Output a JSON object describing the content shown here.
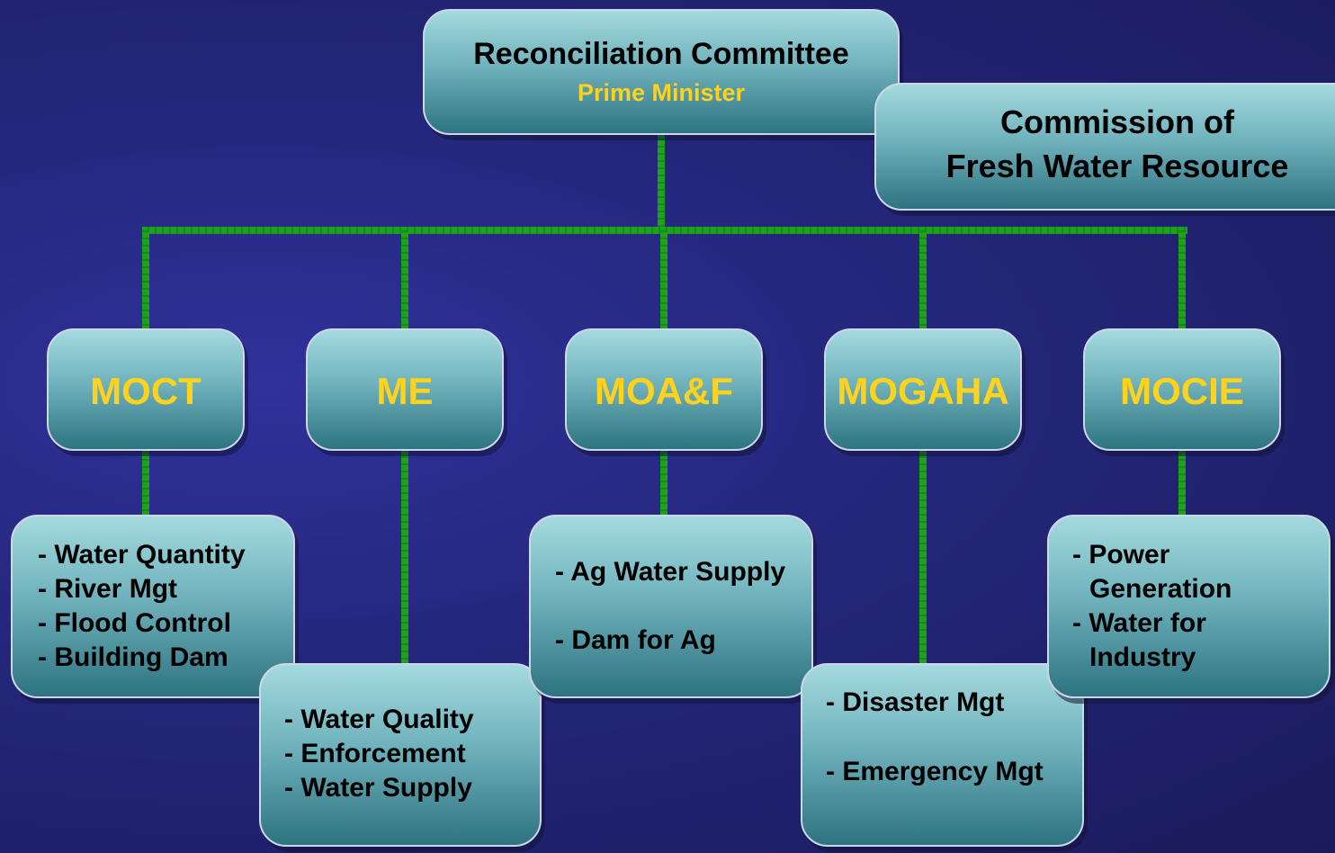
{
  "top": {
    "title": "Reconciliation Committee",
    "subtitle": "Prime Minister"
  },
  "commission": {
    "lines": [
      "Commission of",
      "Fresh Water Resource"
    ]
  },
  "ministries": [
    {
      "name": "MOCT",
      "items": [
        {
          "lines": [
            "- Water Quantity"
          ]
        },
        {
          "lines": [
            "- River Mgt"
          ]
        },
        {
          "lines": [
            "- Flood Control"
          ]
        },
        {
          "lines": [
            "- Building Dam"
          ]
        }
      ]
    },
    {
      "name": "ME",
      "items": [
        {
          "lines": [
            "- Water Quality"
          ]
        },
        {
          "lines": [
            "- Enforcement"
          ]
        },
        {
          "lines": [
            "- Water Supply"
          ]
        }
      ]
    },
    {
      "name": "MOA&F",
      "items": [
        {
          "lines": [
            "- Ag Water Supply"
          ]
        },
        {
          "lines": [
            "- Dam for Ag"
          ]
        }
      ]
    },
    {
      "name": "MOGAHA",
      "items": [
        {
          "lines": [
            "- Disaster Mgt"
          ]
        },
        {
          "lines": [
            "- Emergency Mgt"
          ]
        }
      ]
    },
    {
      "name": "MOCIE",
      "items": [
        {
          "lines": [
            "- Power",
            "Generation"
          ]
        },
        {
          "lines": [
            "- Water for",
            "Industry"
          ]
        }
      ]
    }
  ]
}
